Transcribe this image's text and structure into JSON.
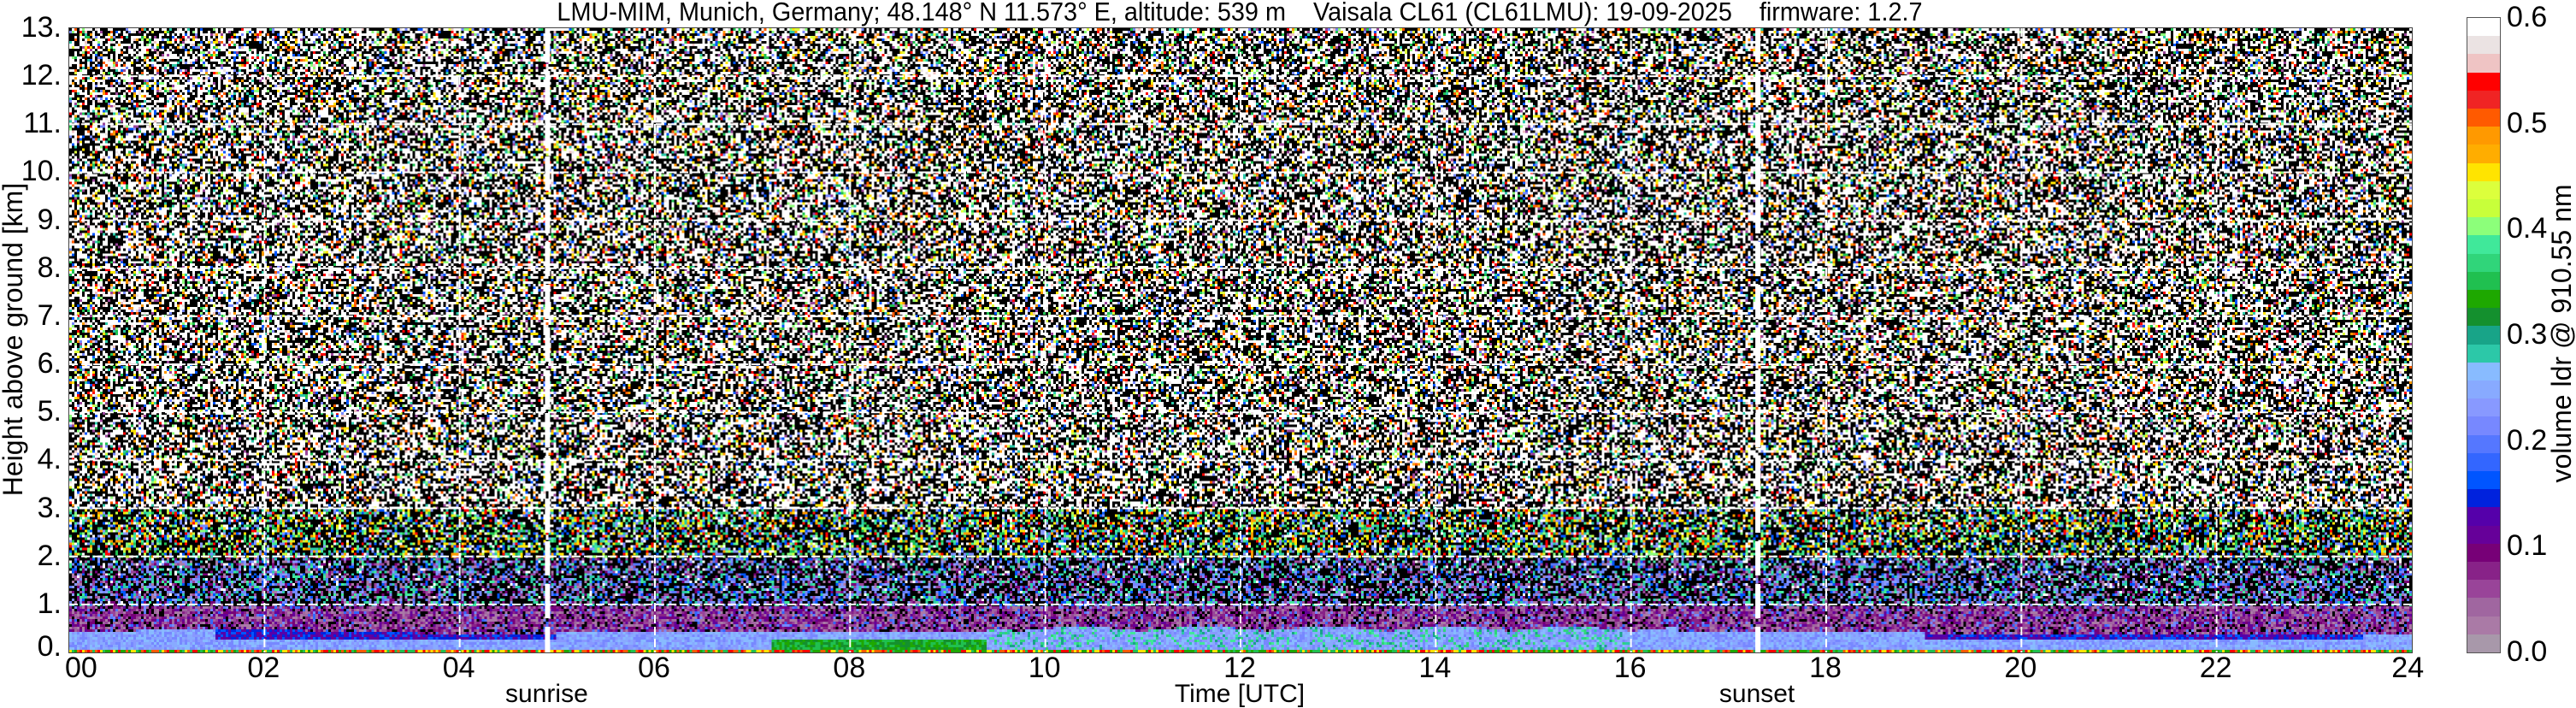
{
  "chart_data": {
    "type": "heatmap",
    "title": "LMU-MIM, Munich, Germany; 48.148° N 11.573° E, altitude: 539 m    Vaisala CL61 (CL61LMU): 19-09-2025    firmware: 1.2.7",
    "xlabel": "Time [UTC]",
    "ylabel": "Height above ground [km]",
    "xlim": [
      0,
      24
    ],
    "ylim": [
      0,
      13
    ],
    "x_ticks": [
      "00",
      "02",
      "04",
      "06",
      "08",
      "10",
      "12",
      "14",
      "16",
      "18",
      "20",
      "22",
      "24"
    ],
    "y_ticks": [
      "0.",
      "1.",
      "2.",
      "3.",
      "4.",
      "5.",
      "6.",
      "7.",
      "8.",
      "9.",
      "10.",
      "11.",
      "12.",
      "13."
    ],
    "grid": true,
    "annotations": [
      {
        "label": "sunrise",
        "x": 4.9
      },
      {
        "label": "sunset",
        "x": 17.3
      }
    ],
    "colorbar": {
      "label": "volume ldr @ 910.55 nm",
      "range": [
        0.0,
        0.6
      ],
      "ticks": [
        "0.0",
        "0.1",
        "0.2",
        "0.3",
        "0.4",
        "0.5",
        "0.6"
      ],
      "colors": [
        "#a898aa",
        "#aa7aa6",
        "#a066a0",
        "#994499",
        "#882288",
        "#770077",
        "#660099",
        "#5500aa",
        "#0022dd",
        "#0055ff",
        "#3366ff",
        "#5577ff",
        "#7788ff",
        "#8899ff",
        "#88aaff",
        "#88bbff",
        "#2cc8a8",
        "#18a488",
        "#14902e",
        "#1ea800",
        "#20c050",
        "#30d57a",
        "#40e89a",
        "#8cff7a",
        "#c8ff3a",
        "#dcff3c",
        "#ffe400",
        "#ffad00",
        "#ff9900",
        "#ff5a00",
        "#f02424",
        "#ff0000",
        "#efc4c4",
        "#ebe3e3",
        "#ffffff"
      ]
    }
  }
}
